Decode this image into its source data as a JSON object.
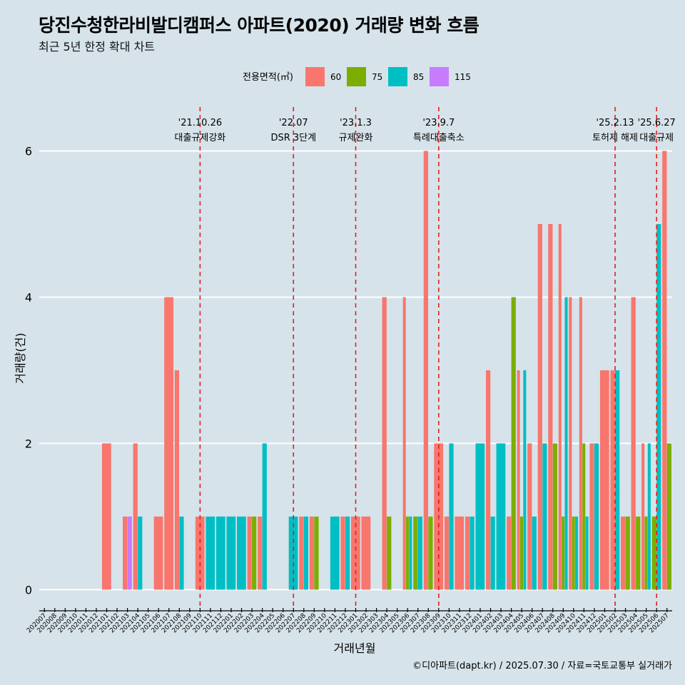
{
  "title": "당진수청한라비발디캠퍼스 아파트(2020) 거래량 변화 흐름",
  "subtitle": "최근 5년 한정 확대 차트",
  "source": "©디아파트(dapt.kr) / 2025.07.30 / 자료=국토교통부 실거래가",
  "chart_data": {
    "type": "bar",
    "xlabel": "거래년월",
    "ylabel": "거래량(건)",
    "ylim": [
      -0.25,
      6.6
    ],
    "yticks": [
      0,
      2,
      4,
      6
    ],
    "legend": {
      "title": "전용면적(㎡)",
      "position": "top",
      "items": [
        {
          "label": "60",
          "color": "#f8766d"
        },
        {
          "label": "75",
          "color": "#7cae00"
        },
        {
          "label": "85",
          "color": "#00bfc4"
        },
        {
          "label": "115",
          "color": "#c77cff"
        }
      ]
    },
    "categories": [
      "202007",
      "202008",
      "202009",
      "202010",
      "202011",
      "202012",
      "202101",
      "202102",
      "202103",
      "202104",
      "202105",
      "202106",
      "202107",
      "202108",
      "202109",
      "202110",
      "202111",
      "202112",
      "202201",
      "202202",
      "202203",
      "202204",
      "202205",
      "202206",
      "202207",
      "202208",
      "202209",
      "202210",
      "202211",
      "202212",
      "202301",
      "202302",
      "202303",
      "202304",
      "202305",
      "202306",
      "202307",
      "202308",
      "202309",
      "202310",
      "202311",
      "202312",
      "202401",
      "202402",
      "202403",
      "202404",
      "202405",
      "202406",
      "202407",
      "202408",
      "202409",
      "202410",
      "202411",
      "202412",
      "202501",
      "202502",
      "202503",
      "202504",
      "202505",
      "202506",
      "202507"
    ],
    "series": [
      {
        "name": "60",
        "color": "#f8766d",
        "values": [
          0,
          0,
          0,
          0,
          0,
          0,
          2,
          0,
          1,
          2,
          0,
          1,
          4,
          3,
          0,
          1,
          0,
          0,
          0,
          0,
          1,
          1,
          0,
          0,
          0,
          1,
          1,
          0,
          0,
          1,
          1,
          1,
          0,
          4,
          0,
          4,
          0,
          6,
          2,
          1,
          1,
          1,
          0,
          3,
          0,
          1,
          3,
          2,
          5,
          5,
          5,
          4,
          4,
          2,
          3,
          3,
          1,
          4,
          2,
          0,
          6
        ]
      },
      {
        "name": "75",
        "color": "#7cae00",
        "values": [
          0,
          0,
          0,
          0,
          0,
          0,
          0,
          0,
          0,
          0,
          0,
          0,
          0,
          0,
          0,
          0,
          0,
          0,
          0,
          0,
          1,
          0,
          0,
          0,
          0,
          0,
          1,
          0,
          0,
          0,
          0,
          0,
          0,
          1,
          0,
          1,
          1,
          1,
          0,
          0,
          0,
          0,
          0,
          0,
          0,
          4,
          1,
          0,
          0,
          2,
          1,
          1,
          2,
          0,
          0,
          0,
          1,
          1,
          1,
          1,
          2
        ]
      },
      {
        "name": "85",
        "color": "#00bfc4",
        "values": [
          0,
          0,
          0,
          0,
          0,
          0,
          0,
          0,
          0,
          1,
          0,
          0,
          0,
          1,
          0,
          0,
          1,
          1,
          1,
          1,
          0,
          2,
          0,
          0,
          1,
          1,
          0,
          0,
          1,
          1,
          0,
          0,
          0,
          0,
          0,
          1,
          1,
          0,
          0,
          2,
          0,
          1,
          2,
          1,
          2,
          0,
          3,
          1,
          2,
          0,
          4,
          1,
          1,
          2,
          0,
          3,
          0,
          0,
          2,
          5,
          0
        ]
      },
      {
        "name": "115",
        "color": "#c77cff",
        "values": [
          0,
          0,
          0,
          0,
          0,
          0,
          0,
          0,
          1,
          0,
          0,
          0,
          0,
          0,
          0,
          0,
          0,
          0,
          0,
          0,
          0,
          0,
          0,
          0,
          0,
          0,
          0,
          0,
          0,
          0,
          0,
          0,
          0,
          0,
          0,
          0,
          0,
          0,
          0,
          0,
          0,
          0,
          0,
          0,
          0,
          0,
          0,
          0,
          0,
          0,
          0,
          0,
          0,
          0,
          0,
          0,
          0,
          0,
          0,
          0,
          0
        ]
      }
    ],
    "events": [
      {
        "month": "202110",
        "date": "'21.10.26",
        "label": "대출규제강화"
      },
      {
        "month": "202207",
        "date": "'22.07",
        "label": "DSR 3단계"
      },
      {
        "month": "202301",
        "date": "'23.1.3",
        "label": "규제완화"
      },
      {
        "month": "202309",
        "date": "'23.9.7",
        "label": "특례대출축소"
      },
      {
        "month": "202502",
        "date": "'25.2.13",
        "label": "토허제 해제"
      },
      {
        "month": "202506",
        "date": "'25.6.27",
        "label": "대출규제"
      }
    ]
  }
}
